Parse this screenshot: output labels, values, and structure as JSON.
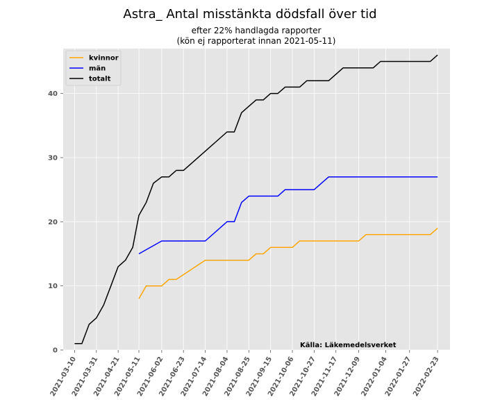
{
  "chart_data": {
    "type": "line",
    "title": "Astra_ Antal misstänkta dödsfall över tid",
    "subtitle_lines": [
      "efter 22% handlagda rapporter",
      "(kön ej rapporterat innan 2021-05-11)"
    ],
    "source": "Källa: Läkemedelsverket",
    "xlabel": "",
    "ylabel": "",
    "ylim": [
      0,
      47
    ],
    "yticks": [
      0,
      10,
      20,
      30,
      40
    ],
    "xlim": [
      "2021-02-27",
      "2022-03-07"
    ],
    "xticks": [
      "2021-03-10",
      "2021-03-31",
      "2021-04-21",
      "2021-05-11",
      "2021-06-02",
      "2021-06-23",
      "2021-07-14",
      "2021-08-04",
      "2021-08-25",
      "2021-09-15",
      "2021-10-06",
      "2021-10-27",
      "2021-11-17",
      "2021-12-09",
      "2022-01-04",
      "2022-01-27",
      "2022-02-23"
    ],
    "grid": true,
    "legend_position": "top-left",
    "series": [
      {
        "name": "kvinnor",
        "color": "#FFA500",
        "points": [
          [
            "2021-05-11",
            8
          ],
          [
            "2021-05-18",
            10
          ],
          [
            "2021-06-02",
            10
          ],
          [
            "2021-06-09",
            11
          ],
          [
            "2021-06-16",
            11
          ],
          [
            "2021-07-14",
            14
          ],
          [
            "2021-08-25",
            14
          ],
          [
            "2021-09-01",
            15
          ],
          [
            "2021-09-08",
            15
          ],
          [
            "2021-09-15",
            16
          ],
          [
            "2021-10-06",
            16
          ],
          [
            "2021-10-13",
            17
          ],
          [
            "2021-12-09",
            17
          ],
          [
            "2021-12-16",
            18
          ],
          [
            "2022-02-16",
            18
          ],
          [
            "2022-02-23",
            19
          ]
        ]
      },
      {
        "name": "män",
        "color": "#0000FF",
        "points": [
          [
            "2021-05-11",
            15
          ],
          [
            "2021-06-02",
            17
          ],
          [
            "2021-07-14",
            17
          ],
          [
            "2021-08-04",
            20
          ],
          [
            "2021-08-11",
            20
          ],
          [
            "2021-08-18",
            23
          ],
          [
            "2021-08-25",
            24
          ],
          [
            "2021-09-22",
            24
          ],
          [
            "2021-09-29",
            25
          ],
          [
            "2021-10-27",
            25
          ],
          [
            "2021-11-10",
            27
          ],
          [
            "2022-02-23",
            27
          ]
        ]
      },
      {
        "name": "totalt",
        "color": "#000000",
        "points": [
          [
            "2021-03-10",
            1
          ],
          [
            "2021-03-17",
            1
          ],
          [
            "2021-03-24",
            4
          ],
          [
            "2021-03-31",
            5
          ],
          [
            "2021-04-07",
            7
          ],
          [
            "2021-04-14",
            10
          ],
          [
            "2021-04-21",
            13
          ],
          [
            "2021-04-28",
            14
          ],
          [
            "2021-05-05",
            16
          ],
          [
            "2021-05-11",
            21
          ],
          [
            "2021-05-18",
            23
          ],
          [
            "2021-05-25",
            26
          ],
          [
            "2021-06-02",
            27
          ],
          [
            "2021-06-09",
            27
          ],
          [
            "2021-06-16",
            28
          ],
          [
            "2021-06-23",
            28
          ],
          [
            "2021-07-14",
            31
          ],
          [
            "2021-08-04",
            34
          ],
          [
            "2021-08-11",
            34
          ],
          [
            "2021-08-18",
            37
          ],
          [
            "2021-08-25",
            38
          ],
          [
            "2021-09-01",
            39
          ],
          [
            "2021-09-08",
            39
          ],
          [
            "2021-09-15",
            40
          ],
          [
            "2021-09-22",
            40
          ],
          [
            "2021-09-29",
            41
          ],
          [
            "2021-10-13",
            41
          ],
          [
            "2021-10-20",
            42
          ],
          [
            "2021-11-10",
            42
          ],
          [
            "2021-11-24",
            44
          ],
          [
            "2021-12-23",
            44
          ],
          [
            "2021-12-30",
            45
          ],
          [
            "2022-02-16",
            45
          ],
          [
            "2022-02-23",
            46
          ]
        ]
      }
    ]
  }
}
